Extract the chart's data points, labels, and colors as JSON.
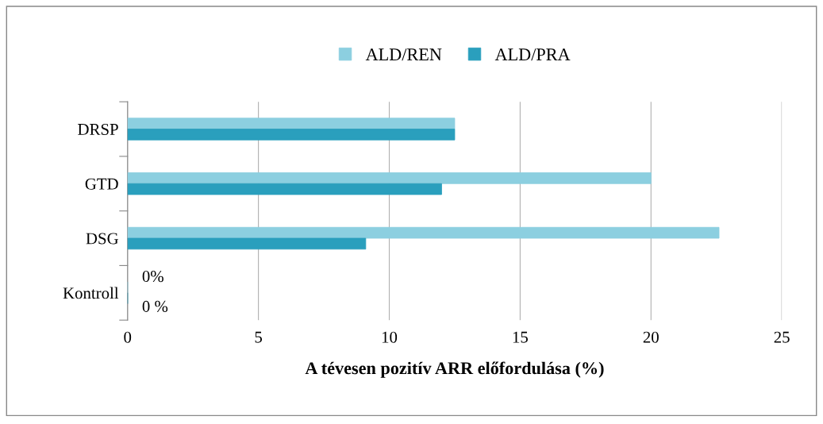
{
  "chart_data": {
    "type": "bar",
    "orientation": "horizontal",
    "xlabel": "A tévesen pozitív ARR előfordulása (%)",
    "categories": [
      "DRSP",
      "GTD",
      "DSG",
      "Kontroll"
    ],
    "series": [
      {
        "name": "ALD/REN",
        "color": "#8ccfe0",
        "values": [
          12.5,
          20,
          22.6,
          0
        ],
        "value_labels": [
          null,
          null,
          null,
          "0%"
        ]
      },
      {
        "name": "ALD/PRA",
        "color": "#2a9fbd",
        "values": [
          12.5,
          12,
          9.1,
          0
        ],
        "value_labels": [
          null,
          null,
          null,
          "0 %"
        ]
      }
    ],
    "xlim": [
      0,
      25
    ],
    "xticks": [
      0,
      5,
      10,
      15,
      20,
      25
    ],
    "grid": "x",
    "legend": "top"
  }
}
